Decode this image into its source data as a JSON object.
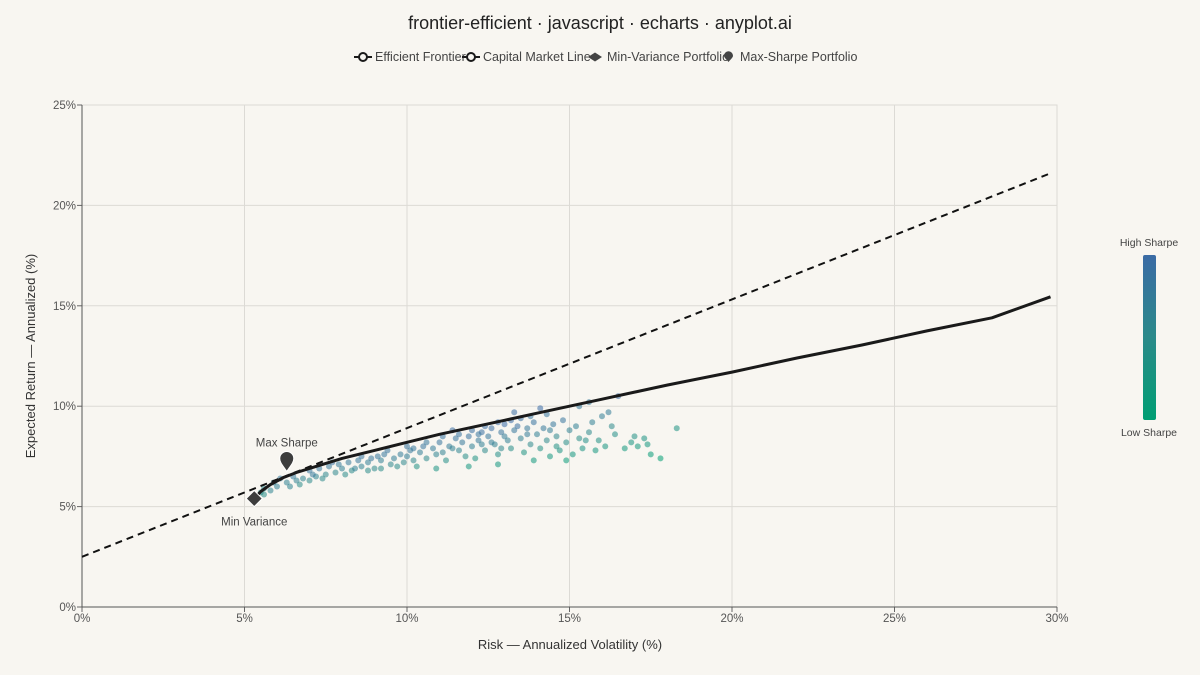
{
  "title": "frontier-efficient · javascript · echarts · anyplot.ai",
  "legend": {
    "items": [
      {
        "name": "Efficient Frontier",
        "marker": "line-circle"
      },
      {
        "name": "Capital Market Line",
        "marker": "line-circle"
      },
      {
        "name": "Min-Variance Portfolio",
        "marker": "diamond"
      },
      {
        "name": "Max-Sharpe Portfolio",
        "marker": "pin"
      }
    ]
  },
  "visual_map": {
    "high_label": "High Sharpe",
    "low_label": "Low Sharpe",
    "colors": [
      "#3b6ba5",
      "#2b8a8a",
      "#009e73"
    ]
  },
  "colors": {
    "background": "#f8f6f1",
    "frontier": "#1a1a1a",
    "cml": "#111111",
    "marker": "#444444",
    "grid": "#dcdad5"
  },
  "chart_data": {
    "type": "scatter",
    "title": "frontier-efficient · javascript · echarts · anyplot.ai",
    "xlabel": "Risk — Annualized Volatility (%)",
    "ylabel": "Expected Return — Annualized (%)",
    "xlim": [
      0,
      30
    ],
    "ylim": [
      0,
      25
    ],
    "xticks": [
      0,
      5,
      10,
      15,
      20,
      25,
      30
    ],
    "yticks": [
      0,
      5,
      10,
      15,
      20,
      25
    ],
    "tick_suffix": "%",
    "grid": true,
    "legend_position": "top-center",
    "efficient_frontier": {
      "name": "Efficient Frontier",
      "x": [
        5.3,
        5.5,
        5.8,
        6.2,
        6.6,
        7.2,
        8.0,
        9.0,
        10.0,
        11.0,
        12.0,
        13.0,
        14.0,
        15.0,
        16.0,
        18.0,
        20.0,
        22.0,
        24.0,
        26.0,
        28.0,
        29.8
      ],
      "y": [
        5.4,
        5.75,
        6.1,
        6.45,
        6.7,
        7.0,
        7.4,
        7.8,
        8.2,
        8.6,
        8.95,
        9.3,
        9.65,
        10.0,
        10.35,
        11.05,
        11.7,
        12.4,
        13.05,
        13.75,
        14.4,
        15.45
      ]
    },
    "capital_market_line": {
      "name": "Capital Market Line",
      "x": [
        0,
        29.8
      ],
      "y": [
        2.5,
        21.6
      ]
    },
    "min_variance": {
      "name": "Min-Variance Portfolio",
      "label": "Min Variance",
      "x": 5.3,
      "y": 5.4
    },
    "max_sharpe": {
      "name": "Max-Sharpe Portfolio",
      "label": "Max Sharpe",
      "x": 6.3,
      "y": 6.9
    },
    "portfolios": [
      [
        5.5,
        5.7,
        0.32
      ],
      [
        5.6,
        5.9,
        0.33
      ],
      [
        5.8,
        5.8,
        0.35
      ],
      [
        5.9,
        6.2,
        0.38
      ],
      [
        6.0,
        6.0,
        0.37
      ],
      [
        6.1,
        6.4,
        0.4
      ],
      [
        6.3,
        6.2,
        0.36
      ],
      [
        6.5,
        6.5,
        0.4
      ],
      [
        6.6,
        6.3,
        0.36
      ],
      [
        6.8,
        6.4,
        0.35
      ],
      [
        7.0,
        6.3,
        0.33
      ],
      [
        7.0,
        6.8,
        0.42
      ],
      [
        7.2,
        6.5,
        0.35
      ],
      [
        7.3,
        6.9,
        0.41
      ],
      [
        7.5,
        6.6,
        0.34
      ],
      [
        7.6,
        7.0,
        0.4
      ],
      [
        7.8,
        6.7,
        0.34
      ],
      [
        7.9,
        7.1,
        0.4
      ],
      [
        8.0,
        6.9,
        0.37
      ],
      [
        8.2,
        7.2,
        0.4
      ],
      [
        8.3,
        6.8,
        0.33
      ],
      [
        8.5,
        7.3,
        0.41
      ],
      [
        8.6,
        7.0,
        0.36
      ],
      [
        8.8,
        7.2,
        0.38
      ],
      [
        8.9,
        7.4,
        0.41
      ],
      [
        9.0,
        6.9,
        0.33
      ],
      [
        9.2,
        7.3,
        0.37
      ],
      [
        9.3,
        7.6,
        0.41
      ],
      [
        9.5,
        7.1,
        0.34
      ],
      [
        9.6,
        7.4,
        0.38
      ],
      [
        9.8,
        7.6,
        0.39
      ],
      [
        9.9,
        7.2,
        0.34
      ],
      [
        10.0,
        7.5,
        0.38
      ],
      [
        10.1,
        7.8,
        0.4
      ],
      [
        10.2,
        7.3,
        0.34
      ],
      [
        10.4,
        7.7,
        0.38
      ],
      [
        10.5,
        8.0,
        0.42
      ],
      [
        10.6,
        7.4,
        0.33
      ],
      [
        10.8,
        7.9,
        0.39
      ],
      [
        10.9,
        7.6,
        0.35
      ],
      [
        11.0,
        8.2,
        0.42
      ],
      [
        11.1,
        7.7,
        0.36
      ],
      [
        11.2,
        7.3,
        0.3
      ],
      [
        11.3,
        8.0,
        0.39
      ],
      [
        11.5,
        8.4,
        0.42
      ],
      [
        11.6,
        7.8,
        0.35
      ],
      [
        11.7,
        8.2,
        0.4
      ],
      [
        11.8,
        7.5,
        0.31
      ],
      [
        11.9,
        8.5,
        0.43
      ],
      [
        12.0,
        8.0,
        0.37
      ],
      [
        12.1,
        7.4,
        0.28
      ],
      [
        12.2,
        8.3,
        0.4
      ],
      [
        12.3,
        8.7,
        0.44
      ],
      [
        12.4,
        7.8,
        0.33
      ],
      [
        12.5,
        8.5,
        0.41
      ],
      [
        12.6,
        8.9,
        0.45
      ],
      [
        12.7,
        8.1,
        0.36
      ],
      [
        12.8,
        7.6,
        0.3
      ],
      [
        12.9,
        8.7,
        0.42
      ],
      [
        13.0,
        9.1,
        0.46
      ],
      [
        13.1,
        8.3,
        0.37
      ],
      [
        13.2,
        7.9,
        0.31
      ],
      [
        13.3,
        8.8,
        0.41
      ],
      [
        13.4,
        9.0,
        0.44
      ],
      [
        13.5,
        8.4,
        0.36
      ],
      [
        13.6,
        7.7,
        0.28
      ],
      [
        13.7,
        8.9,
        0.4
      ],
      [
        13.8,
        8.1,
        0.33
      ],
      [
        13.9,
        9.2,
        0.43
      ],
      [
        14.0,
        8.6,
        0.37
      ],
      [
        14.1,
        7.9,
        0.29
      ],
      [
        14.2,
        8.9,
        0.4
      ],
      [
        14.3,
        8.3,
        0.33
      ],
      [
        14.4,
        7.5,
        0.25
      ],
      [
        14.5,
        9.1,
        0.41
      ],
      [
        14.6,
        8.5,
        0.34
      ],
      [
        14.7,
        7.8,
        0.27
      ],
      [
        14.8,
        9.3,
        0.42
      ],
      [
        14.9,
        8.2,
        0.31
      ],
      [
        15.0,
        8.8,
        0.36
      ],
      [
        15.1,
        7.6,
        0.25
      ],
      [
        15.2,
        9.0,
        0.37
      ],
      [
        15.3,
        8.4,
        0.31
      ],
      [
        15.4,
        7.9,
        0.27
      ],
      [
        15.6,
        8.7,
        0.33
      ],
      [
        15.7,
        9.2,
        0.37
      ],
      [
        15.8,
        7.8,
        0.25
      ],
      [
        15.9,
        8.3,
        0.29
      ],
      [
        16.0,
        9.5,
        0.38
      ],
      [
        16.1,
        8.0,
        0.26
      ],
      [
        16.2,
        9.7,
        0.39
      ],
      [
        16.4,
        8.6,
        0.3
      ],
      [
        16.5,
        10.5,
        0.45
      ],
      [
        16.7,
        7.9,
        0.24
      ],
      [
        16.9,
        8.2,
        0.26
      ],
      [
        17.1,
        8.0,
        0.24
      ],
      [
        17.3,
        8.4,
        0.27
      ],
      [
        17.5,
        7.6,
        0.21
      ],
      [
        17.8,
        7.4,
        0.19
      ],
      [
        18.3,
        8.9,
        0.28
      ],
      [
        12.0,
        8.8,
        0.44
      ],
      [
        12.4,
        9.0,
        0.45
      ],
      [
        12.8,
        9.2,
        0.46
      ],
      [
        13.2,
        9.3,
        0.46
      ],
      [
        11.6,
        8.6,
        0.43
      ],
      [
        12.2,
        8.6,
        0.42
      ],
      [
        12.6,
        8.2,
        0.38
      ],
      [
        13.0,
        8.5,
        0.39
      ],
      [
        11.4,
        7.9,
        0.36
      ],
      [
        10.6,
        8.2,
        0.41
      ],
      [
        9.4,
        7.8,
        0.42
      ],
      [
        8.6,
        7.5,
        0.42
      ],
      [
        9.2,
        6.9,
        0.32
      ],
      [
        10.3,
        7.0,
        0.29
      ],
      [
        10.9,
        6.9,
        0.27
      ],
      [
        11.9,
        7.0,
        0.25
      ],
      [
        12.8,
        7.1,
        0.25
      ],
      [
        13.9,
        7.3,
        0.24
      ],
      [
        14.9,
        7.3,
        0.22
      ],
      [
        15.5,
        8.3,
        0.3
      ],
      [
        14.3,
        9.6,
        0.42
      ],
      [
        13.8,
        9.5,
        0.42
      ],
      [
        13.3,
        9.7,
        0.45
      ],
      [
        15.3,
        10.0,
        0.4
      ],
      [
        14.6,
        8.0,
        0.29
      ],
      [
        11.1,
        8.5,
        0.43
      ],
      [
        12.9,
        7.9,
        0.34
      ],
      [
        10.2,
        7.9,
        0.41
      ],
      [
        9.7,
        7.0,
        0.32
      ],
      [
        8.4,
        6.9,
        0.37
      ],
      [
        7.7,
        7.2,
        0.44
      ],
      [
        7.1,
        6.6,
        0.4
      ],
      [
        6.4,
        6.0,
        0.35
      ],
      [
        5.6,
        5.6,
        0.31
      ],
      [
        6.7,
        6.1,
        0.32
      ],
      [
        7.4,
        6.4,
        0.33
      ],
      [
        8.1,
        6.6,
        0.32
      ],
      [
        8.8,
        6.8,
        0.32
      ],
      [
        11.4,
        8.8,
        0.45
      ],
      [
        13.5,
        9.4,
        0.44
      ],
      [
        14.1,
        9.9,
        0.46
      ],
      [
        15.6,
        10.2,
        0.4
      ],
      [
        16.3,
        9.0,
        0.33
      ],
      [
        17.0,
        8.5,
        0.29
      ],
      [
        17.4,
        8.1,
        0.25
      ],
      [
        14.4,
        8.8,
        0.38
      ],
      [
        13.7,
        8.6,
        0.39
      ],
      [
        12.3,
        8.1,
        0.37
      ],
      [
        10.0,
        8.0,
        0.42
      ],
      [
        9.1,
        7.5,
        0.41
      ]
    ]
  }
}
